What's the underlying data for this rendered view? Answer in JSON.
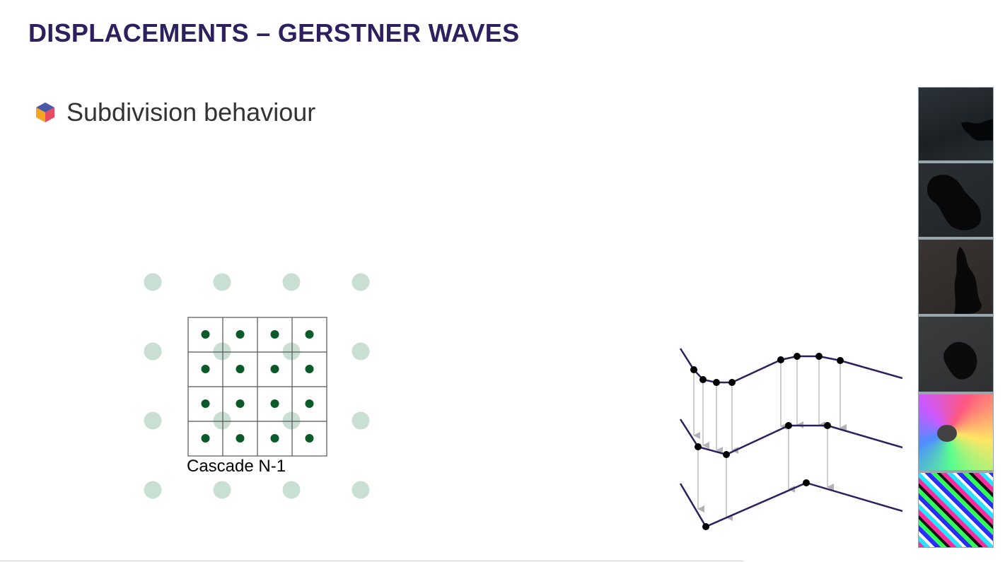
{
  "slide": {
    "title": "DISPLACEMENTS – GERSTNER WAVES",
    "bullet": "Subdivision behaviour",
    "cascade_label": "Cascade N-1"
  },
  "colors": {
    "title": "#2e1f5e",
    "fine_dot": "#0b5a2a",
    "coarse_dot": "#c9dfd3",
    "wave_line": "#2e1f5e",
    "arrow": "#b3b3b3"
  },
  "icons": {
    "bullet": "hexagon-cube-icon"
  }
}
